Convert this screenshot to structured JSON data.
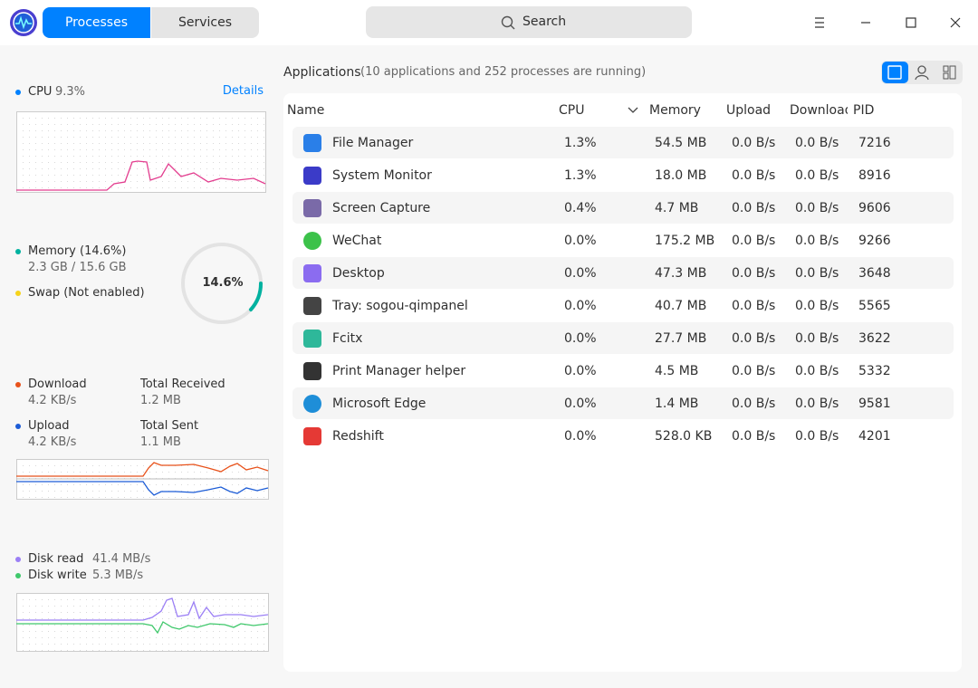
{
  "titlebar": {
    "tabs": [
      "Processes",
      "Services"
    ],
    "search": "Search"
  },
  "sidebar": {
    "cpu": {
      "label": "CPU",
      "value": "9.3%",
      "details": "Details"
    },
    "memory": {
      "label": "Memory (14.6%)",
      "usage": "2.3 GB / 15.6 GB",
      "ring": "14.6%",
      "swap": "Swap (Not enabled)"
    },
    "network": {
      "download": {
        "label": "Download",
        "value": "4.2 KB/s"
      },
      "total_received": {
        "label": "Total Received",
        "value": "1.2 MB"
      },
      "upload": {
        "label": "Upload",
        "value": "4.2 KB/s"
      },
      "total_sent": {
        "label": "Total Sent",
        "value": "1.1 MB"
      }
    },
    "disk": {
      "read": {
        "label": "Disk read",
        "value": "41.4 MB/s"
      },
      "write": {
        "label": "Disk write",
        "value": "5.3 MB/s"
      }
    }
  },
  "table": {
    "title": "Applications",
    "subtitle": "(10 applications and 252 processes are running)",
    "columns": [
      "Name",
      "CPU",
      "Memory",
      "Upload",
      "Download",
      "PID"
    ],
    "rows": [
      [
        "File Manager",
        "1.3%",
        "54.5 MB",
        "0.0 B/s",
        "0.0 B/s",
        "7216"
      ],
      [
        "System Monitor",
        "1.3%",
        "18.0 MB",
        "0.0 B/s",
        "0.0 B/s",
        "8916"
      ],
      [
        "Screen Capture",
        "0.4%",
        "4.7 MB",
        "0.0 B/s",
        "0.0 B/s",
        "9606"
      ],
      [
        "WeChat",
        "0.0%",
        "175.2 MB",
        "0.0 B/s",
        "0.0 B/s",
        "9266"
      ],
      [
        "Desktop",
        "0.0%",
        "47.3 MB",
        "0.0 B/s",
        "0.0 B/s",
        "3648"
      ],
      [
        "Tray: sogou-qimpanel",
        "0.0%",
        "40.7 MB",
        "0.0 B/s",
        "0.0 B/s",
        "5565"
      ],
      [
        "Fcitx",
        "0.0%",
        "27.7 MB",
        "0.0 B/s",
        "0.0 B/s",
        "3622"
      ],
      [
        "Print Manager helper",
        "0.0%",
        "4.5 MB",
        "0.0 B/s",
        "0.0 B/s",
        "5332"
      ],
      [
        "Microsoft Edge",
        "0.0%",
        "1.4 MB",
        "0.0 B/s",
        "0.0 B/s",
        "9581"
      ],
      [
        "Redshift",
        "0.0%",
        "528.0 KB",
        "0.0 B/s",
        "0.0 B/s",
        "4201"
      ]
    ]
  }
}
